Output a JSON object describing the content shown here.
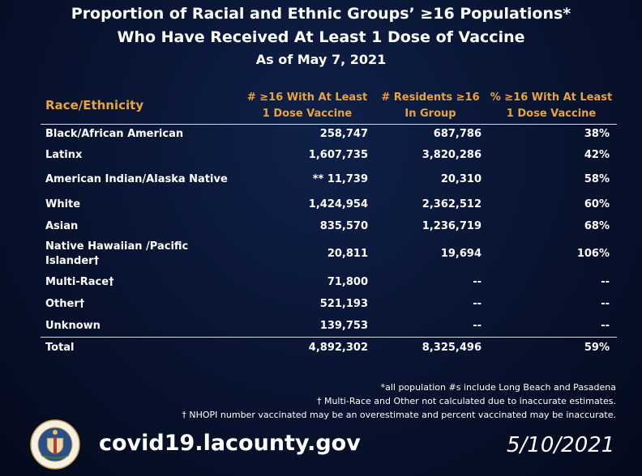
{
  "title": {
    "line1": "Proportion of Racial and Ethnic Groups’ ≥16 Populations*",
    "line2": "Who Have Received At Least 1 Dose of Vaccine",
    "line3": "As of May 7, 2021"
  },
  "columns": {
    "race": "Race/Ethnicity",
    "vaccinated_l1": "# ≥16 With At Least",
    "vaccinated_l2": "1 Dose Vaccine",
    "residents_l1": "# Residents ≥16",
    "residents_l2": "In Group",
    "pct_l1": "% ≥16 With At Least",
    "pct_l2": "1 Dose Vaccine"
  },
  "rows": [
    {
      "group": "Black/African American",
      "vaccinated": "258,747",
      "residents": "687,786",
      "pct": "38%"
    },
    {
      "group": "Latinx",
      "vaccinated": "1,607,735",
      "residents": "3,820,286",
      "pct": "42%"
    },
    {
      "group": "American Indian/Alaska Native",
      "vaccinated": "** 11,739",
      "residents": "20,310",
      "pct": "58%"
    },
    {
      "group": "White",
      "vaccinated": "1,424,954",
      "residents": "2,362,512",
      "pct": "60%"
    },
    {
      "group": "Asian",
      "vaccinated": "835,570",
      "residents": "1,236,719",
      "pct": "68%"
    },
    {
      "group": "Native Hawaiian /Pacific",
      "group_l2": "Islander†",
      "vaccinated": "20,811",
      "residents": "19,694",
      "pct": "106%"
    },
    {
      "group": "Multi-Race†",
      "vaccinated": "71,800",
      "residents": "--",
      "pct": "--"
    },
    {
      "group": "Other†",
      "vaccinated": "521,193",
      "residents": "--",
      "pct": "--"
    },
    {
      "group": "Unknown",
      "vaccinated": "139,753",
      "residents": "--",
      "pct": "--"
    }
  ],
  "total": {
    "group": "Total",
    "vaccinated": "4,892,302",
    "residents": "8,325,496",
    "pct": "59%"
  },
  "notes": [
    "*all population #s include Long Beach and Pasadena",
    "† Multi-Race and Other not calculated due to inaccurate estimates.",
    "† NHOPI number vaccinated may be an overestimate and percent vaccinated may be inaccurate."
  ],
  "footer": {
    "url": "covid19.lacounty.gov",
    "date": "5/10/2021",
    "seal_text": "COUNTY OF LOS ANGELES · CALIFORNIA"
  }
}
